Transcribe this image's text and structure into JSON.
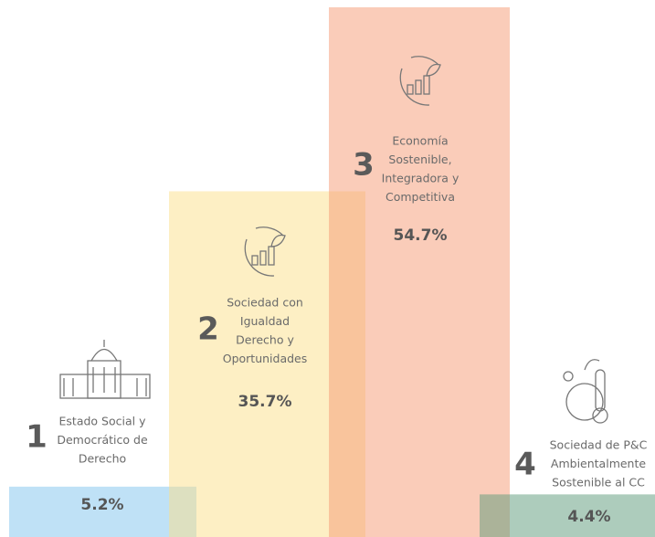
{
  "chart_data": {
    "type": "bar",
    "numbers": [
      "1",
      "2",
      "3",
      "4"
    ],
    "categories": [
      [
        "Estado Social y",
        "Democrático de",
        "Derecho"
      ],
      [
        "Sociedad con",
        "Igualdad",
        "Derecho y",
        "Oportunidades"
      ],
      [
        "Economía",
        "Sostenible,",
        "Integradora y",
        "Competitiva"
      ],
      [
        "Sociedad de P&C",
        "Ambientalmente",
        "Sostenible al CC"
      ]
    ],
    "values": [
      5.2,
      35.7,
      54.7,
      4.4
    ],
    "value_labels": [
      "5.2%",
      "35.7%",
      "54.7%",
      "4.4%"
    ],
    "colors": [
      "#7fc3ee",
      "#fbe08a",
      "#f59a73",
      "#5b9a7a"
    ]
  }
}
